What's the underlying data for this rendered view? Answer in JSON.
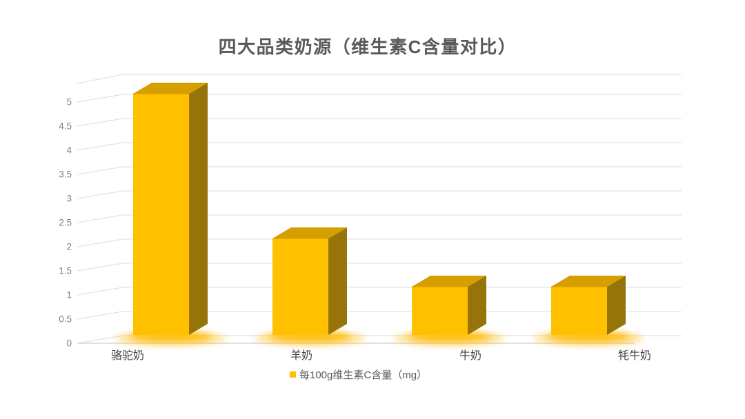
{
  "page": {
    "background": "#FFFFFF"
  },
  "title": "四大品类奶源（维生素C含量对比）",
  "legend": {
    "label": "每100g维生素C含量（mg）",
    "swatch_color": "#FFC000"
  },
  "chart_data": {
    "type": "bar",
    "projection": "3d-column",
    "title": "四大品类奶源（维生素C含量对比）",
    "categories": [
      "骆驼奶",
      "羊奶",
      "牛奶",
      "牦牛奶"
    ],
    "values": [
      5,
      2,
      1,
      1
    ],
    "series": [
      {
        "name": "每100g维生素C含量（mg）",
        "values": [
          5,
          2,
          1,
          1
        ]
      }
    ],
    "xlabel": "",
    "ylabel": "",
    "ylim": [
      0,
      5
    ],
    "ytick_step": 0.5,
    "yticks": [
      0,
      0.5,
      1,
      1.5,
      2,
      2.5,
      3,
      3.5,
      4,
      4.5,
      5
    ],
    "grid": true,
    "legend_position": "bottom",
    "colors": {
      "bar_front": "#FFC000",
      "bar_top": "#D69F00",
      "bar_side": "#97740A",
      "bar_edge": "#DA9C00",
      "glow": "#FFB900",
      "gridline": "#DCDCDC",
      "axis_line": "#D0D0D0",
      "title_text": "#595959",
      "tick_text": "#808080",
      "category_text": "#444444",
      "legend_text": "#595959"
    }
  }
}
